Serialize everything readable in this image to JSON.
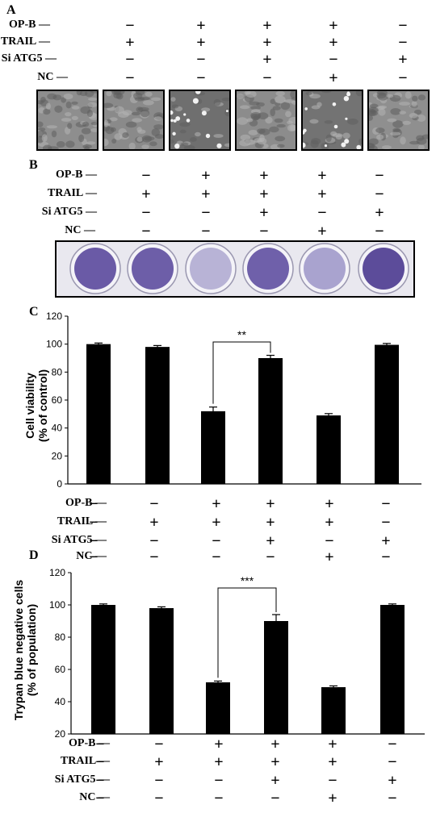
{
  "panels": {
    "a": "A",
    "b": "B",
    "c": "C",
    "d": "D"
  },
  "conditions": {
    "row_labels": [
      "OP-B",
      "TRAIL",
      "Si ATG5",
      "NC"
    ],
    "signs": [
      [
        "−",
        "+",
        "+",
        "+",
        "−"
      ],
      [
        "+",
        "+",
        "+",
        "+",
        "−"
      ],
      [
        "−",
        "−",
        "+",
        "−",
        "+"
      ],
      [
        "−",
        "−",
        "−",
        "+",
        "−"
      ]
    ],
    "signs_with_control": [
      [
        "−",
        "−",
        "+",
        "+",
        "+",
        "−"
      ],
      [
        "−",
        "+",
        "+",
        "+",
        "+",
        "−"
      ],
      [
        "−",
        "−",
        "−",
        "+",
        "−",
        "+"
      ],
      [
        "−",
        "−",
        "−",
        "−",
        "+",
        "−"
      ]
    ]
  },
  "micrographs": [
    {
      "label": "control",
      "tone": "#8e8e8e"
    },
    {
      "label": "TRAIL",
      "tone": "#8a8a8a"
    },
    {
      "label": "OP-B + TRAIL",
      "tone": "#6f6f6f"
    },
    {
      "label": "OP-B + TRAIL + Si ATG5",
      "tone": "#8c8c8c"
    },
    {
      "label": "OP-B + TRAIL + NC",
      "tone": "#737373"
    },
    {
      "label": "Si ATG5",
      "tone": "#8f8f8f"
    }
  ],
  "wells": [
    {
      "stain": "#6a5aa6"
    },
    {
      "stain": "#6d5ea8"
    },
    {
      "stain": "#b8b3d6"
    },
    {
      "stain": "#6f60aa"
    },
    {
      "stain": "#a9a3cf"
    },
    {
      "stain": "#5c4c9a"
    }
  ],
  "chart_data": [
    {
      "type": "bar",
      "panel": "C",
      "ylabel": "Cell viability\n(% of control)",
      "ylim": [
        0,
        120
      ],
      "yticks": [
        0,
        20,
        40,
        60,
        80,
        100,
        120
      ],
      "values": [
        100,
        98,
        52,
        90,
        49,
        99.5
      ],
      "errors": [
        0.8,
        1,
        3,
        2,
        1.3,
        1
      ],
      "bar_color": "#000000",
      "significance": {
        "from": 2,
        "to": 3,
        "label": "**"
      }
    },
    {
      "type": "bar",
      "panel": "D",
      "ylabel": "Trypan blue negative cells\n(% of population)",
      "ylim": [
        20,
        120
      ],
      "yticks": [
        20,
        40,
        60,
        80,
        100,
        120
      ],
      "values": [
        100,
        98,
        52,
        90,
        49,
        100
      ],
      "errors": [
        0.6,
        0.8,
        0.8,
        4,
        0.8,
        0.6
      ],
      "bar_color": "#000000",
      "significance": {
        "from": 2,
        "to": 3,
        "label": "***"
      }
    }
  ]
}
